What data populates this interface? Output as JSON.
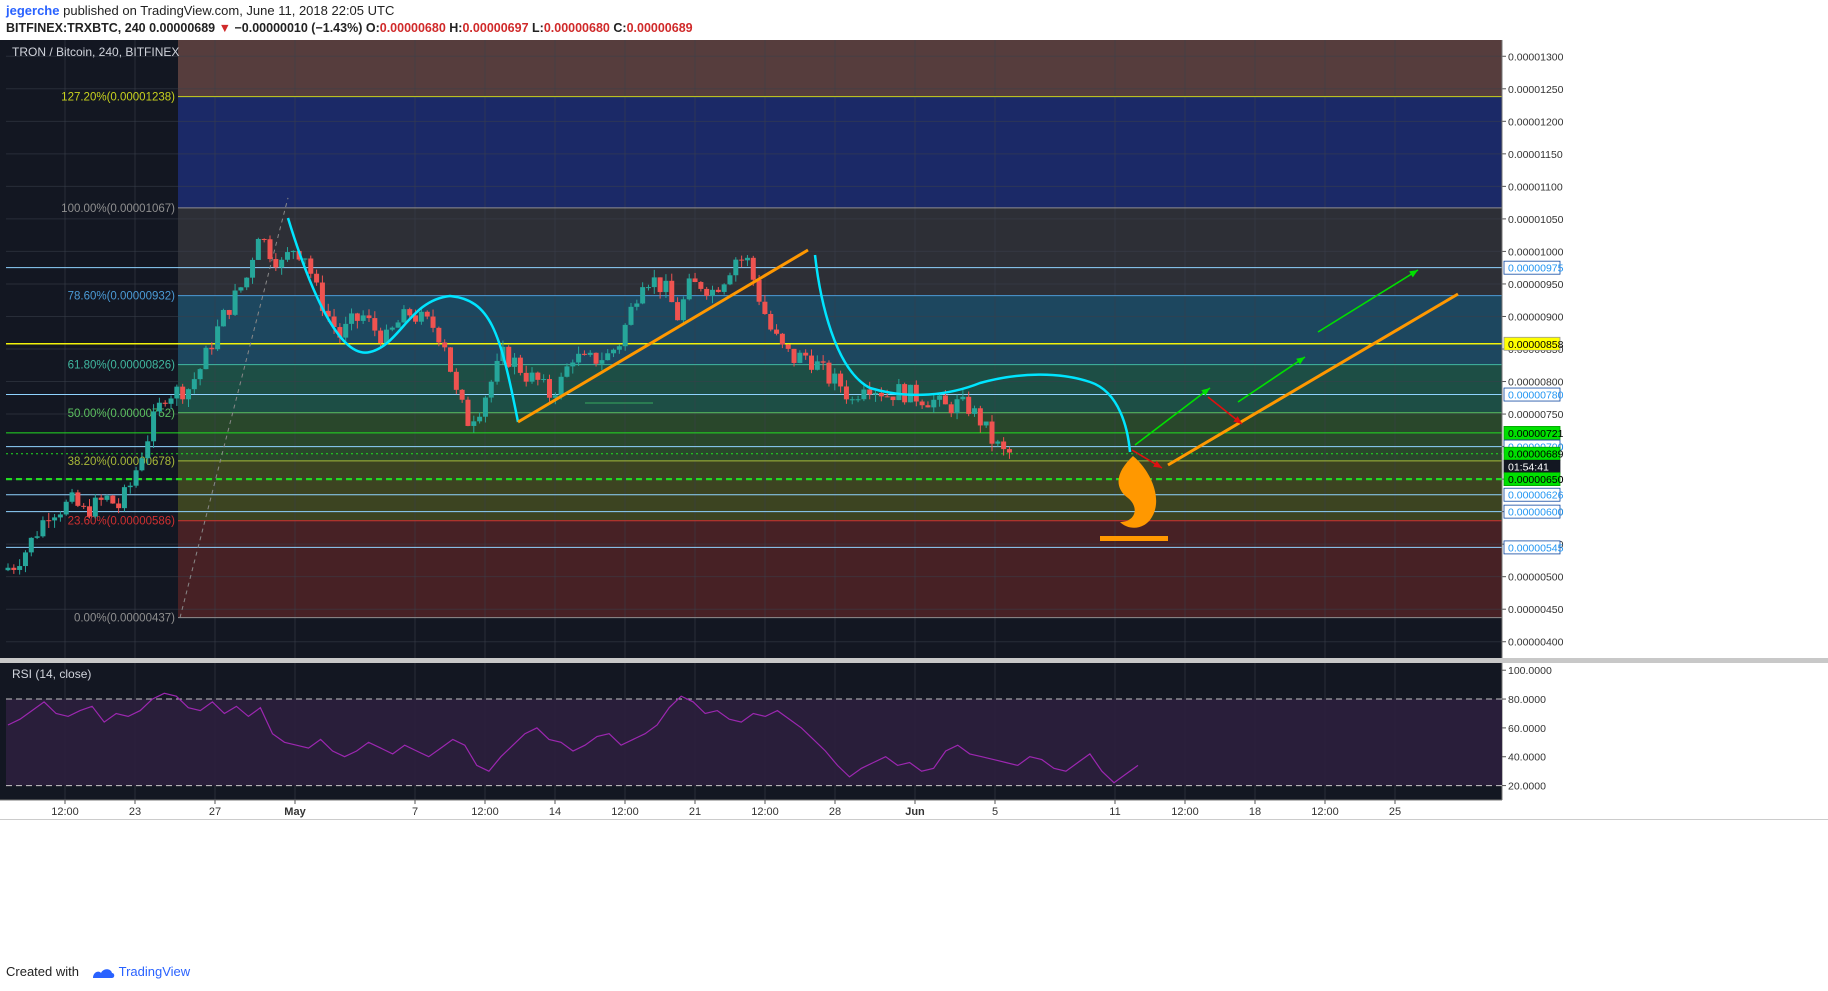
{
  "header": {
    "author": "jegerche",
    "published": "published on TradingView.com, June 11, 2018 22:05 UTC",
    "symbol": "BITFINEX:TRXBTC, 240",
    "last": "0.00000689",
    "change": "−0.00000010 (−1.43%)",
    "o_label": "O:",
    "o_val": "0.00000680",
    "h_label": "H:",
    "h_val": "0.00000697",
    "l_label": "L:",
    "l_val": "0.00000680",
    "c_label": "C:",
    "c_val": "0.00000689"
  },
  "pane_title": "TRON / Bitcoin, 240, BITFINEX",
  "rsi_title": "RSI (14, close)",
  "footer": {
    "created_with": "Created with",
    "brand": "TradingView"
  },
  "colors": {
    "up": "#26a69a",
    "down": "#ef5350",
    "cyan": "#00e5ff",
    "orange": "#ff9800",
    "green": "#00e000",
    "red_arrow": "#e01010",
    "rsi": "#9c27b0",
    "grid": "#3a3f4b",
    "pane_bg": "#131722"
  },
  "chart_data": [
    {
      "type": "candlestick",
      "title": "TRON / Bitcoin, 240, BITFINEX",
      "ylim": [
        3.75e-06,
        1.325e-05
      ],
      "y_ticks": [
        "0.00001300",
        "0.00001250",
        "0.00001200",
        "0.00001150",
        "0.00001100",
        "0.00001050",
        "0.00001000",
        "0.00000950",
        "0.00000900",
        "0.00000850",
        "0.00000800",
        "0.00000750",
        "0.00000700",
        "0.00000650",
        "0.00000600",
        "0.00000550",
        "0.00000500",
        "0.00000450",
        "0.00000400"
      ],
      "x_ticks": [
        "12:00",
        "23",
        "27",
        "May",
        "7",
        "12:00",
        "14",
        "12:00",
        "21",
        "12:00",
        "28",
        "Jun",
        "5",
        "11",
        "12:00",
        "18",
        "12:00",
        "25"
      ],
      "price_labels": [
        {
          "text": "0.00000975",
          "value": 9.75e-06,
          "style": "cyan"
        },
        {
          "text": "0.00000858",
          "value": 8.58e-06,
          "style": "yellow"
        },
        {
          "text": "0.00000780",
          "value": 7.8e-06,
          "style": "cyan"
        },
        {
          "text": "0.00000721",
          "value": 7.21e-06,
          "style": "green"
        },
        {
          "text": "0.00000700",
          "value": 7e-06,
          "style": "cyan"
        },
        {
          "text": "0.00000689",
          "value": 6.89e-06,
          "style": "green"
        },
        {
          "text": "01:54:41",
          "value": 6.69e-06,
          "style": "dark"
        },
        {
          "text": "0.00000650",
          "value": 6.5e-06,
          "style": "green"
        },
        {
          "text": "0.00000626",
          "value": 6.26e-06,
          "style": "cyan"
        },
        {
          "text": "0.00000600",
          "value": 6e-06,
          "style": "cyan"
        },
        {
          "text": "0.00000545",
          "value": 5.45e-06,
          "style": "cyan"
        }
      ],
      "fib_levels": [
        {
          "label": "127.20%(0.00001238)",
          "value": 1.238e-05
        },
        {
          "label": "100.00%(0.00001067)",
          "value": 1.067e-05
        },
        {
          "label": "78.60%(0.00000932)",
          "value": 9.32e-06
        },
        {
          "label": "61.80%(0.00000826)",
          "value": 8.26e-06
        },
        {
          "label": "50.00%(0.00000752)",
          "value": 7.52e-06
        },
        {
          "label": "38.20%(0.00000678)",
          "value": 6.78e-06
        },
        {
          "label": "23.60%(0.00000586)",
          "value": 5.86e-06
        },
        {
          "label": "0.00%(0.00000437)",
          "value": 4.37e-06
        }
      ],
      "close_path": [
        [
          0,
          5.1e-06
        ],
        [
          2,
          5.18e-06
        ],
        [
          4,
          5.4e-06
        ],
        [
          6,
          5.7e-06
        ],
        [
          8,
          6e-06
        ],
        [
          10,
          6.05e-06
        ],
        [
          12,
          6.15e-06
        ],
        [
          14,
          6e-06
        ],
        [
          16,
          6.1e-06
        ],
        [
          18,
          6.2e-06
        ],
        [
          20,
          6.08e-06
        ],
        [
          22,
          6.4e-06
        ],
        [
          24,
          6.9e-06
        ],
        [
          26,
          7.4e-06
        ],
        [
          28,
          7.8e-06
        ],
        [
          30,
          7.85e-06
        ],
        [
          32,
          7.9e-06
        ],
        [
          34,
          8.2e-06
        ],
        [
          36,
          8.6e-06
        ],
        [
          38,
          9e-06
        ],
        [
          40,
          9.3e-06
        ],
        [
          42,
          9.6e-06
        ],
        [
          44,
          1.03e-05
        ],
        [
          46,
          1e-05
        ],
        [
          48,
          9.8e-06
        ],
        [
          50,
          1.005e-05
        ],
        [
          52,
          9.95e-06
        ],
        [
          54,
          9.4e-06
        ],
        [
          56,
          9e-06
        ],
        [
          58,
          8.7e-06
        ],
        [
          60,
          8.9e-06
        ],
        [
          62,
          9e-06
        ],
        [
          64,
          8.8e-06
        ],
        [
          66,
          8.65e-06
        ],
        [
          68,
          8.9e-06
        ],
        [
          70,
          9.05e-06
        ],
        [
          72,
          8.95e-06
        ],
        [
          74,
          8.85e-06
        ],
        [
          76,
          8.6e-06
        ],
        [
          78,
          7.8e-06
        ],
        [
          80,
          7.4e-06
        ],
        [
          82,
          7.6e-06
        ],
        [
          84,
          8e-06
        ],
        [
          86,
          8.4e-06
        ],
        [
          88,
          8.3e-06
        ],
        [
          90,
          8.1e-06
        ],
        [
          92,
          8e-06
        ],
        [
          94,
          7.8e-06
        ],
        [
          96,
          8e-06
        ],
        [
          98,
          8.4e-06
        ],
        [
          100,
          8.3e-06
        ],
        [
          102,
          8.35e-06
        ],
        [
          104,
          8.4e-06
        ],
        [
          106,
          8.6e-06
        ],
        [
          108,
          9.1e-06
        ],
        [
          110,
          9.6e-06
        ],
        [
          112,
          9.55e-06
        ],
        [
          114,
          9.4e-06
        ],
        [
          116,
          9e-06
        ],
        [
          118,
          9.45e-06
        ],
        [
          120,
          9.5e-06
        ],
        [
          122,
          9.4e-06
        ],
        [
          124,
          9.6e-06
        ],
        [
          126,
          9.9e-06
        ],
        [
          128,
          9.85e-06
        ],
        [
          130,
          9.3e-06
        ],
        [
          132,
          8.8e-06
        ],
        [
          134,
          8.5e-06
        ],
        [
          136,
          8.35e-06
        ],
        [
          138,
          8.4e-06
        ],
        [
          140,
          8.25e-06
        ],
        [
          142,
          8.05e-06
        ],
        [
          144,
          7.95e-06
        ],
        [
          146,
          7.7e-06
        ],
        [
          148,
          8e-06
        ],
        [
          150,
          7.9e-06
        ],
        [
          152,
          7.8e-06
        ],
        [
          154,
          7.85e-06
        ],
        [
          156,
          7.8e-06
        ],
        [
          158,
          7.75e-06
        ],
        [
          160,
          7.7e-06
        ],
        [
          162,
          7.6e-06
        ],
        [
          164,
          7.65e-06
        ],
        [
          166,
          7.6e-06
        ],
        [
          168,
          7.4e-06
        ],
        [
          170,
          7.1e-06
        ],
        [
          172,
          6.9e-06
        ],
        [
          173,
          6.89e-06
        ]
      ],
      "x_max_bars": 173,
      "total_bars": 265
    },
    {
      "type": "line",
      "title": "RSI (14, close)",
      "ylim": [
        10,
        105
      ],
      "y_ticks": [
        "100.0000",
        "80.0000",
        "60.0000",
        "40.0000",
        "20.0000"
      ],
      "bands": [
        80,
        20
      ],
      "series": [
        {
          "values": [
            62,
            66,
            72,
            78,
            70,
            68,
            72,
            75,
            64,
            70,
            68,
            72,
            80,
            84,
            82,
            74,
            72,
            78,
            70,
            75,
            68,
            74,
            56,
            50,
            48,
            46,
            52,
            44,
            40,
            44,
            50,
            46,
            42,
            48,
            44,
            40,
            46,
            52,
            48,
            34,
            30,
            40,
            48,
            56,
            60,
            52,
            50,
            44,
            48,
            54,
            56,
            48,
            52,
            56,
            62,
            74,
            82,
            78,
            70,
            72,
            66,
            64,
            70,
            68,
            72,
            66,
            60,
            52,
            44,
            34,
            26,
            32,
            36,
            40,
            34,
            36,
            30,
            32,
            44,
            48,
            42,
            40,
            38,
            36,
            34,
            40,
            38,
            32,
            30,
            36,
            42,
            30,
            22,
            28,
            34
          ]
        }
      ]
    }
  ]
}
